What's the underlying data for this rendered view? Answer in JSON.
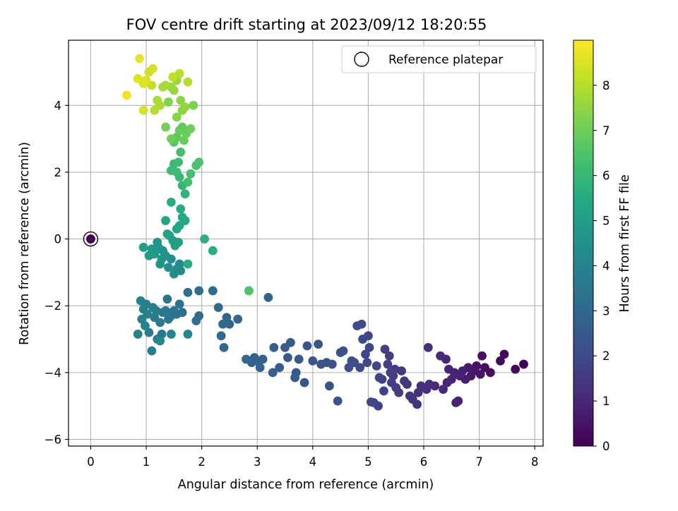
{
  "chart_data": {
    "type": "scatter",
    "title": "FOV centre drift starting at 2023/09/12 18:20:55",
    "xlabel": "Angular distance from reference (arcmin)",
    "ylabel": "Rotation from reference (arcmin)",
    "xlim": [
      -0.4,
      8.15
    ],
    "ylim": [
      -6.2,
      5.95
    ],
    "xticks": [
      0,
      1,
      2,
      3,
      4,
      5,
      6,
      7,
      8
    ],
    "yticks": [
      -6,
      -4,
      -2,
      0,
      2,
      4
    ],
    "grid": true,
    "legend": {
      "position": "top-right",
      "entries": [
        "Reference platepar"
      ]
    },
    "colorbar": {
      "label": "Hours from first FF file",
      "range": [
        0,
        9
      ],
      "ticks": [
        0,
        1,
        2,
        3,
        4,
        5,
        6,
        7,
        8
      ],
      "colormap": "viridis"
    },
    "reference_point": {
      "x": 0,
      "y": 0
    },
    "series": [
      {
        "points": [
          [
            0,
            0,
            0
          ],
          [
            7.8,
            -3.75,
            0.1
          ],
          [
            7.65,
            -3.9,
            0.15
          ],
          [
            7.45,
            -3.45,
            0.2
          ],
          [
            7.38,
            -3.65,
            0.25
          ],
          [
            7.2,
            -4.0,
            0.3
          ],
          [
            7.1,
            -3.85,
            0.35
          ],
          [
            7.05,
            -3.5,
            0.4
          ],
          [
            7.02,
            -4.05,
            0.45
          ],
          [
            6.95,
            -3.8,
            0.5
          ],
          [
            6.9,
            -3.95,
            0.55
          ],
          [
            6.85,
            -4.1,
            0.6
          ],
          [
            6.8,
            -3.85,
            0.65
          ],
          [
            6.75,
            -4.2,
            0.7
          ],
          [
            6.7,
            -3.95,
            0.75
          ],
          [
            6.65,
            -4.1,
            0.8
          ],
          [
            6.62,
            -4.85,
            0.82
          ],
          [
            6.58,
            -4.9,
            0.84
          ],
          [
            6.55,
            -4.0,
            0.88
          ],
          [
            6.5,
            -4.2,
            0.9
          ],
          [
            6.45,
            -3.9,
            0.95
          ],
          [
            6.42,
            -4.3,
            1.0
          ],
          [
            6.4,
            -3.6,
            1.02
          ],
          [
            6.35,
            -4.5,
            1.05
          ],
          [
            6.3,
            -3.5,
            1.08
          ],
          [
            6.2,
            -4.4,
            1.1
          ],
          [
            6.1,
            -4.35,
            1.15
          ],
          [
            6.08,
            -3.25,
            1.18
          ],
          [
            6.05,
            -4.5,
            1.2
          ],
          [
            5.95,
            -4.4,
            1.25
          ],
          [
            5.9,
            -4.6,
            1.3
          ],
          [
            5.88,
            -4.95,
            1.33
          ],
          [
            5.8,
            -4.8,
            1.36
          ],
          [
            5.75,
            -4.7,
            1.4
          ],
          [
            5.7,
            -4.35,
            1.43
          ],
          [
            5.65,
            -4.25,
            1.46
          ],
          [
            5.6,
            -3.95,
            1.5
          ],
          [
            5.55,
            -4.6,
            1.52
          ],
          [
            5.5,
            -4.45,
            1.55
          ],
          [
            5.48,
            -3.9,
            1.58
          ],
          [
            5.45,
            -4.1,
            1.6
          ],
          [
            5.42,
            -4.3,
            1.63
          ],
          [
            5.4,
            -4.0,
            1.66
          ],
          [
            5.38,
            -3.5,
            1.68
          ],
          [
            5.35,
            -3.75,
            1.7
          ],
          [
            5.3,
            -3.3,
            1.72
          ],
          [
            5.28,
            -4.55,
            1.75
          ],
          [
            5.25,
            -4.2,
            1.78
          ],
          [
            5.2,
            -4.15,
            1.8
          ],
          [
            5.18,
            -5.0,
            1.82
          ],
          [
            5.15,
            -3.8,
            1.85
          ],
          [
            5.1,
            -4.9,
            1.87
          ],
          [
            5.05,
            -4.88,
            1.9
          ],
          [
            5.02,
            -3.25,
            1.92
          ],
          [
            5.0,
            -2.9,
            1.95
          ],
          [
            4.98,
            -3.7,
            1.97
          ],
          [
            4.95,
            -3.45,
            2.0
          ],
          [
            4.9,
            -3.0,
            2.02
          ],
          [
            4.88,
            -2.55,
            2.05
          ],
          [
            4.85,
            -3.85,
            2.07
          ],
          [
            4.8,
            -2.6,
            2.1
          ],
          [
            4.75,
            -3.7,
            2.12
          ],
          [
            4.7,
            -3.65,
            2.15
          ],
          [
            4.65,
            -3.85,
            2.17
          ],
          [
            4.55,
            -3.35,
            2.2
          ],
          [
            4.5,
            -3.4,
            2.22
          ],
          [
            4.45,
            -4.85,
            2.25
          ],
          [
            4.35,
            -3.75,
            2.27
          ],
          [
            4.3,
            -4.4,
            2.3
          ],
          [
            4.25,
            -3.7,
            2.32
          ],
          [
            4.15,
            -3.75,
            2.35
          ],
          [
            4.1,
            -3.15,
            2.37
          ],
          [
            4.0,
            -3.65,
            2.4
          ],
          [
            3.9,
            -3.2,
            2.45
          ],
          [
            3.85,
            -4.3,
            2.47
          ],
          [
            3.75,
            -3.6,
            2.5
          ],
          [
            3.7,
            -4.0,
            2.53
          ],
          [
            3.68,
            -4.15,
            2.55
          ],
          [
            3.6,
            -3.1,
            2.58
          ],
          [
            3.55,
            -3.55,
            2.6
          ],
          [
            3.5,
            -3.25,
            2.63
          ],
          [
            3.4,
            -3.85,
            2.66
          ],
          [
            3.3,
            -3.25,
            2.7
          ],
          [
            3.28,
            -4.0,
            2.72
          ],
          [
            3.1,
            -3.6,
            2.75
          ],
          [
            3.05,
            -3.85,
            2.78
          ],
          [
            3.0,
            -3.65,
            2.8
          ],
          [
            2.95,
            -3.55,
            2.83
          ],
          [
            2.9,
            -3.7,
            2.86
          ],
          [
            2.8,
            -3.6,
            2.9
          ],
          [
            3.2,
            -1.75,
            2.92
          ],
          [
            2.65,
            -2.4,
            2.95
          ],
          [
            2.5,
            -2.55,
            2.98
          ],
          [
            2.45,
            -2.35,
            3.0
          ],
          [
            2.4,
            -3.25,
            3.05
          ],
          [
            2.38,
            -2.55,
            3.08
          ],
          [
            2.35,
            -2.9,
            3.1
          ],
          [
            2.3,
            -2.05,
            3.12
          ],
          [
            2.2,
            -1.55,
            3.15
          ],
          [
            1.95,
            -2.3,
            3.2
          ],
          [
            1.9,
            -2.45,
            3.23
          ],
          [
            1.95,
            -1.55,
            3.26
          ],
          [
            1.75,
            -1.6,
            3.3
          ],
          [
            1.65,
            -2.2,
            3.33
          ],
          [
            1.6,
            -1.95,
            3.36
          ],
          [
            1.55,
            -2.25,
            3.4
          ],
          [
            1.5,
            -2.15,
            3.43
          ],
          [
            1.45,
            -2.3,
            3.46
          ],
          [
            1.4,
            -2.4,
            3.5
          ],
          [
            1.38,
            -1.8,
            3.52
          ],
          [
            1.35,
            -2.15,
            3.55
          ],
          [
            1.3,
            -2.2,
            3.58
          ],
          [
            1.28,
            -2.85,
            3.6
          ],
          [
            1.25,
            -2.5,
            3.63
          ],
          [
            1.2,
            -3.0,
            3.66
          ],
          [
            1.18,
            -2.15,
            3.7
          ],
          [
            1.15,
            -2.35,
            3.72
          ],
          [
            1.12,
            -2.05,
            3.75
          ],
          [
            1.1,
            -3.35,
            3.78
          ],
          [
            1.05,
            -2.8,
            3.8
          ],
          [
            1.02,
            -2.25,
            3.83
          ],
          [
            1.0,
            -1.95,
            3.86
          ],
          [
            0.98,
            -2.6,
            3.9
          ],
          [
            0.95,
            -2.1,
            3.92
          ],
          [
            0.92,
            -2.4,
            3.95
          ],
          [
            0.9,
            -1.85,
            3.97
          ],
          [
            0.85,
            -2.85,
            4.0
          ],
          [
            1.45,
            -2.85,
            4.05
          ],
          [
            1.25,
            -3.05,
            4.1
          ],
          [
            1.75,
            -2.85,
            4.15
          ],
          [
            1.62,
            -0.95,
            4.2
          ],
          [
            1.6,
            -0.75,
            4.25
          ],
          [
            1.55,
            -0.9,
            4.3
          ],
          [
            1.5,
            -1.05,
            4.35
          ],
          [
            1.45,
            -0.6,
            4.4
          ],
          [
            1.4,
            -0.85,
            4.45
          ],
          [
            1.35,
            -0.5,
            4.5
          ],
          [
            1.3,
            -0.35,
            4.55
          ],
          [
            1.28,
            -0.6,
            4.6
          ],
          [
            1.25,
            -0.75,
            4.65
          ],
          [
            1.22,
            -0.25,
            4.7
          ],
          [
            1.2,
            -0.1,
            4.75
          ],
          [
            1.15,
            -0.45,
            4.8
          ],
          [
            1.1,
            -0.3,
            4.85
          ],
          [
            1.05,
            -0.5,
            4.9
          ],
          [
            0.95,
            -0.25,
            4.95
          ],
          [
            1.48,
            -0.05,
            5.0
          ],
          [
            1.52,
            -0.2,
            5.05
          ],
          [
            1.58,
            -0.1,
            5.1
          ],
          [
            1.42,
            0.1,
            5.15
          ],
          [
            1.38,
            0.15,
            5.2
          ],
          [
            1.35,
            0.55,
            5.25
          ],
          [
            1.55,
            0.3,
            5.3
          ],
          [
            1.6,
            0.4,
            5.35
          ],
          [
            1.65,
            0.65,
            5.4
          ],
          [
            1.7,
            0.55,
            5.45
          ],
          [
            1.62,
            0.9,
            5.5
          ],
          [
            1.45,
            1.1,
            5.55
          ],
          [
            1.75,
            -0.75,
            5.6
          ],
          [
            2.2,
            -0.35,
            5.65
          ],
          [
            2.05,
            0.0,
            5.7
          ],
          [
            1.7,
            1.35,
            5.8
          ],
          [
            1.65,
            1.6,
            5.9
          ],
          [
            1.6,
            1.85,
            6.0
          ],
          [
            1.55,
            2.0,
            6.05
          ],
          [
            1.5,
            2.25,
            6.1
          ],
          [
            1.45,
            2.05,
            6.15
          ],
          [
            1.58,
            2.3,
            6.2
          ],
          [
            1.62,
            2.6,
            6.25
          ],
          [
            1.75,
            1.7,
            6.3
          ],
          [
            1.8,
            1.95,
            6.35
          ],
          [
            1.9,
            2.2,
            6.4
          ],
          [
            1.95,
            2.3,
            6.45
          ],
          [
            2.85,
            -1.55,
            6.5
          ],
          [
            1.5,
            2.9,
            6.6
          ],
          [
            1.55,
            3.05,
            6.7
          ],
          [
            1.6,
            3.25,
            6.8
          ],
          [
            1.65,
            3.35,
            6.85
          ],
          [
            1.68,
            2.95,
            6.9
          ],
          [
            1.72,
            3.15,
            6.95
          ],
          [
            1.8,
            3.3,
            7.0
          ],
          [
            1.45,
            3.0,
            7.05
          ],
          [
            1.35,
            3.35,
            7.1
          ],
          [
            1.85,
            4.0,
            7.2
          ],
          [
            1.4,
            4.1,
            7.3
          ],
          [
            1.55,
            3.65,
            7.35
          ],
          [
            1.65,
            3.85,
            7.4
          ],
          [
            1.62,
            4.15,
            7.45
          ],
          [
            1.7,
            3.95,
            7.5
          ],
          [
            1.5,
            4.45,
            7.6
          ],
          [
            1.45,
            4.55,
            7.65
          ],
          [
            1.55,
            4.75,
            7.7
          ],
          [
            1.35,
            4.6,
            7.75
          ],
          [
            1.3,
            4.55,
            7.8
          ],
          [
            1.25,
            4.0,
            7.85
          ],
          [
            1.2,
            4.15,
            7.9
          ],
          [
            1.15,
            3.85,
            7.95
          ],
          [
            1.75,
            4.7,
            8.0
          ],
          [
            1.6,
            4.95,
            8.05
          ],
          [
            1.48,
            4.85,
            8.1
          ],
          [
            1.1,
            4.6,
            8.2
          ],
          [
            1.05,
            5.0,
            8.3
          ],
          [
            1.12,
            5.1,
            8.4
          ],
          [
            0.95,
            3.85,
            8.45
          ],
          [
            1.0,
            4.75,
            8.5
          ],
          [
            0.95,
            4.65,
            8.55
          ],
          [
            0.85,
            4.8,
            8.6
          ],
          [
            0.88,
            5.4,
            8.7
          ],
          [
            0.65,
            4.3,
            8.8
          ]
        ]
      }
    ]
  }
}
